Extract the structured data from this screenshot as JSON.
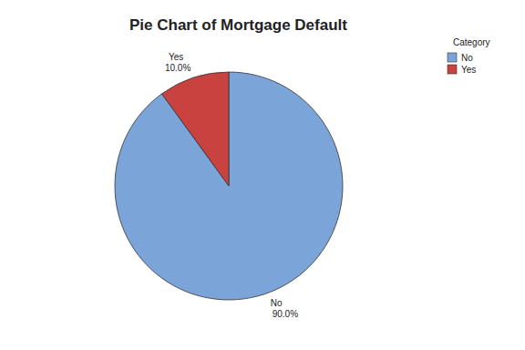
{
  "chart_data": {
    "type": "pie",
    "title": "Pie Chart of Mortgage Default",
    "legend_title": "Category",
    "categories": [
      "No",
      "Yes"
    ],
    "values": [
      90,
      10
    ],
    "value_labels": [
      "90.0%",
      "10.0%"
    ],
    "colors": [
      "#7ba4d9",
      "#c8433f"
    ],
    "data_labels": true,
    "legend": "top-right"
  }
}
